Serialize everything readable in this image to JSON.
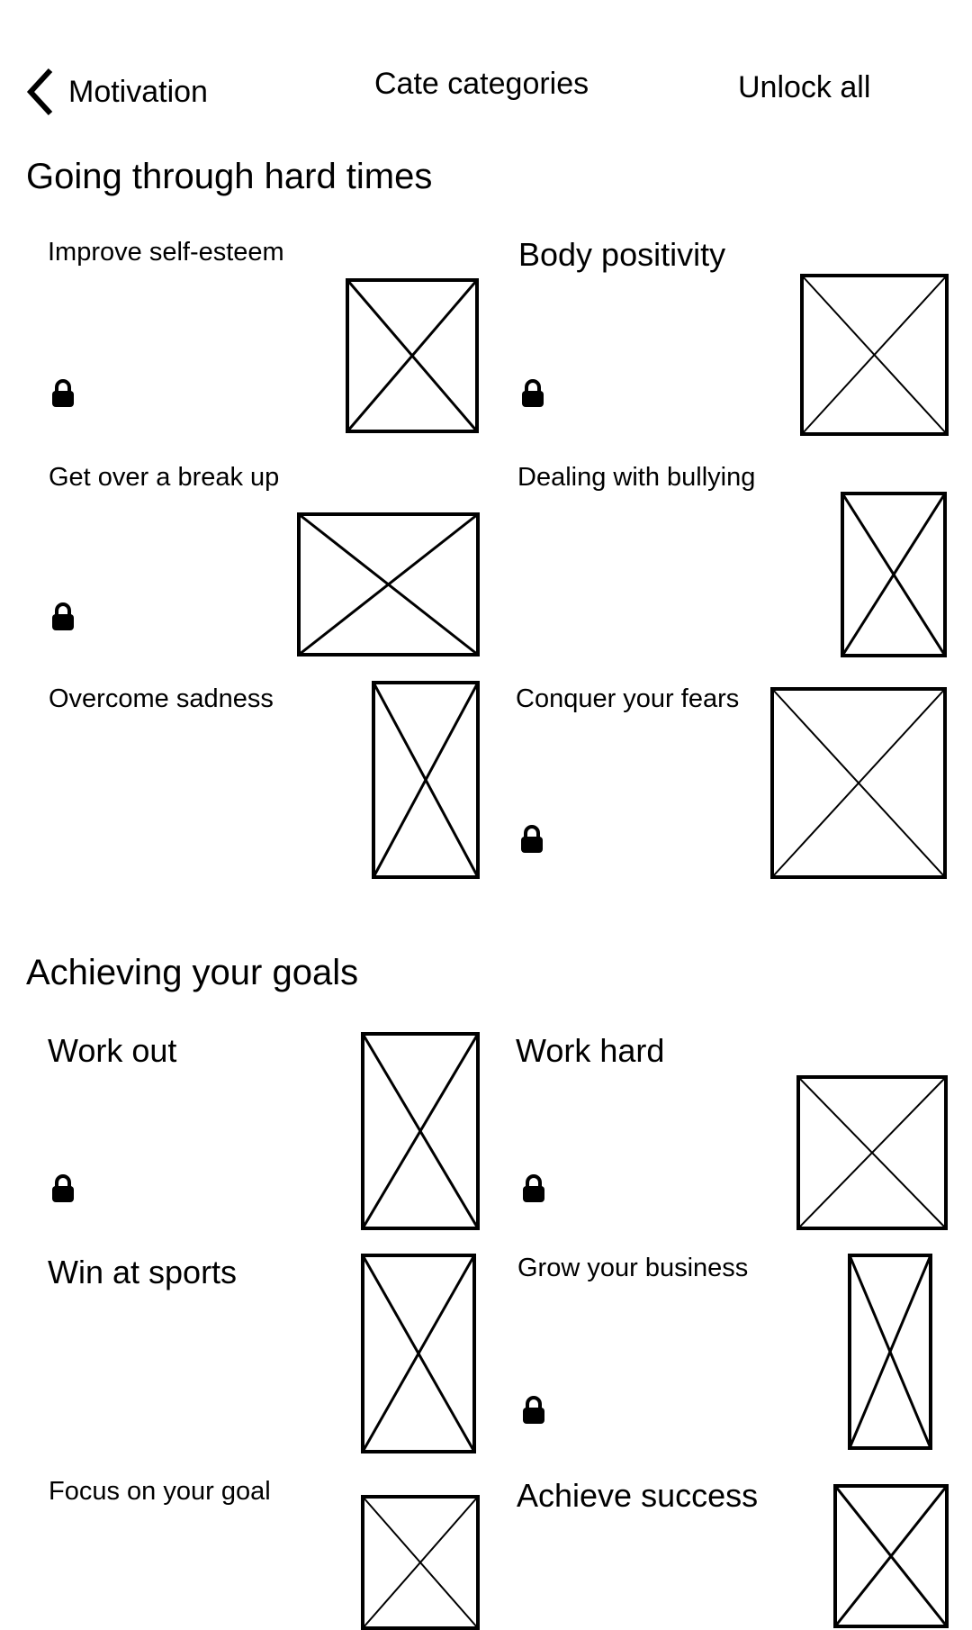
{
  "header": {
    "back_label": "Motivation",
    "title": "Cate categories",
    "unlock_label": "Unlock all"
  },
  "sections": [
    {
      "title": "Going through hard times",
      "cards": [
        {
          "label": "Improve self-esteem",
          "locked": true
        },
        {
          "label": "Body positivity",
          "locked": true
        },
        {
          "label": "Get over a break up",
          "locked": true
        },
        {
          "label": "Dealing with bullying",
          "locked": false
        },
        {
          "label": "Overcome sadness",
          "locked": false
        },
        {
          "label": "Conquer your fears",
          "locked": true
        }
      ]
    },
    {
      "title": "Achieving your goals",
      "cards": [
        {
          "label": "Work out",
          "locked": true
        },
        {
          "label": "Work hard",
          "locked": true
        },
        {
          "label": "Win at sports",
          "locked": false
        },
        {
          "label": "Grow your business",
          "locked": true
        },
        {
          "label": "Focus on your goal",
          "locked": false
        },
        {
          "label": "Achieve success",
          "locked": false
        }
      ]
    }
  ],
  "icons": {
    "back": "chevron-left-icon",
    "lock": "lock-icon",
    "thumbnail": "image-placeholder-icon"
  }
}
